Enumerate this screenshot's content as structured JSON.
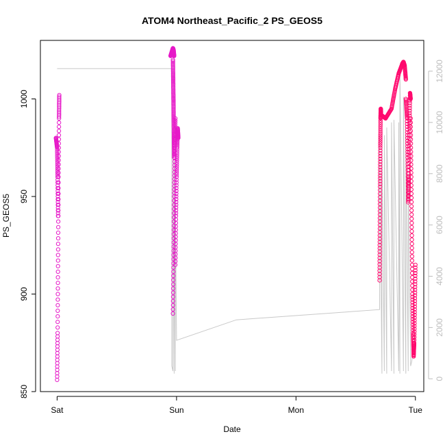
{
  "chart_data": {
    "type": "scatter",
    "title": "ATOM4 Northeast_Pacific_2 PS_GEOS5",
    "xlabel": "Date",
    "ylabel": "PS_GEOS5",
    "x_ticks": [
      "Sat",
      "Sun",
      "Mon",
      "Tue"
    ],
    "x_tick_values_days": [
      0,
      1,
      2,
      3
    ],
    "xlim_days": [
      -0.14,
      3.07
    ],
    "ylim": [
      850,
      1030
    ],
    "y_ticks": [
      850,
      900,
      950,
      1000
    ],
    "y2_ticks": [
      0,
      2000,
      4000,
      6000,
      8000,
      10000,
      12000
    ],
    "y2lim": [
      -500,
      13200
    ],
    "grid": false,
    "legend": "none",
    "colors": {
      "points_early": "#e619c8",
      "points_late": "#ff0a6e",
      "altitude_line": "#c8c8c8"
    },
    "series": [
      {
        "kind": "points",
        "segments": [
          {
            "x": [
              0.0,
              0.004,
              0.008,
              0.012,
              0.016,
              0.018
            ],
            "y": [
              856,
              880,
              920,
              960,
              990,
              1002
            ]
          },
          {
            "x": [
              -0.01,
              0.0,
              0.004,
              0.008
            ],
            "y": [
              980,
              975,
              960,
              940
            ]
          },
          {
            "x": [
              0.95,
              0.955,
              0.96,
              0.965,
              0.97,
              0.975,
              0.98
            ],
            "y": [
              1022,
              1023,
              1024,
              1025,
              1026,
              1025,
              1022
            ]
          },
          {
            "x": [
              0.97,
              0.972,
              0.974,
              0.976,
              0.978,
              0.98
            ],
            "y": [
              1020,
              1010,
              1000,
              990,
              980,
              970
            ]
          },
          {
            "x": [
              0.97,
              0.975,
              0.98,
              0.985,
              0.99
            ],
            "y": [
              890,
              920,
              950,
              975,
              990
            ]
          },
          {
            "x": [
              0.99,
              0.995,
              1.0,
              1.005,
              1.01,
              1.015
            ],
            "y": [
              915,
              940,
              960,
              975,
              985,
              980
            ]
          },
          {
            "x": [
              2.7,
              2.702,
              2.704,
              2.706,
              2.708,
              2.71,
              2.712
            ],
            "y": [
              907,
              930,
              955,
              975,
              990,
              995,
              993
            ]
          },
          {
            "x": [
              2.71,
              2.75,
              2.8,
              2.83,
              2.86,
              2.89,
              2.9,
              2.91,
              2.92
            ],
            "y": [
              992,
              990,
              995,
              1005,
              1013,
              1018,
              1019,
              1017,
              1010
            ]
          },
          {
            "x": [
              2.92,
              2.93,
              2.935,
              2.94,
              2.945,
              2.95,
              2.955,
              2.96
            ],
            "y": [
              1000,
              990,
              970,
              947,
              960,
              985,
              1003,
              1000
            ]
          },
          {
            "x": [
              2.96,
              2.965,
              2.97,
              2.975,
              2.98,
              2.985,
              2.99,
              2.995,
              3.0
            ],
            "y": [
              990,
              960,
              930,
              900,
              880,
              868,
              875,
              895,
              915
            ]
          }
        ]
      },
      {
        "kind": "line",
        "name_axis": "right",
        "x": [
          0.0,
          0.004,
          0.006,
          0.008,
          0.96,
          0.96,
          0.97,
          0.97,
          0.98,
          0.98,
          0.99,
          0.99,
          1.0,
          1.5,
          2.7,
          2.7,
          2.72,
          2.72,
          2.74,
          2.74,
          2.76,
          2.76,
          2.8,
          2.8,
          2.82,
          2.82,
          2.86,
          2.86,
          2.87,
          2.87,
          2.9,
          2.9,
          2.92,
          2.92,
          2.94,
          2.94,
          2.96,
          2.97,
          2.98
        ],
        "y": [
          12100,
          12100,
          12100,
          12100,
          12100,
          500,
          300,
          9000,
          200,
          8500,
          300,
          7000,
          1500,
          2300,
          2700,
          9500,
          200,
          9000,
          300,
          9500,
          200,
          9800,
          300,
          10000,
          200,
          10100,
          300,
          10000,
          200,
          12200,
          300,
          11000,
          200,
          9500,
          300,
          8000,
          500,
          700,
          1200
        ]
      }
    ]
  }
}
